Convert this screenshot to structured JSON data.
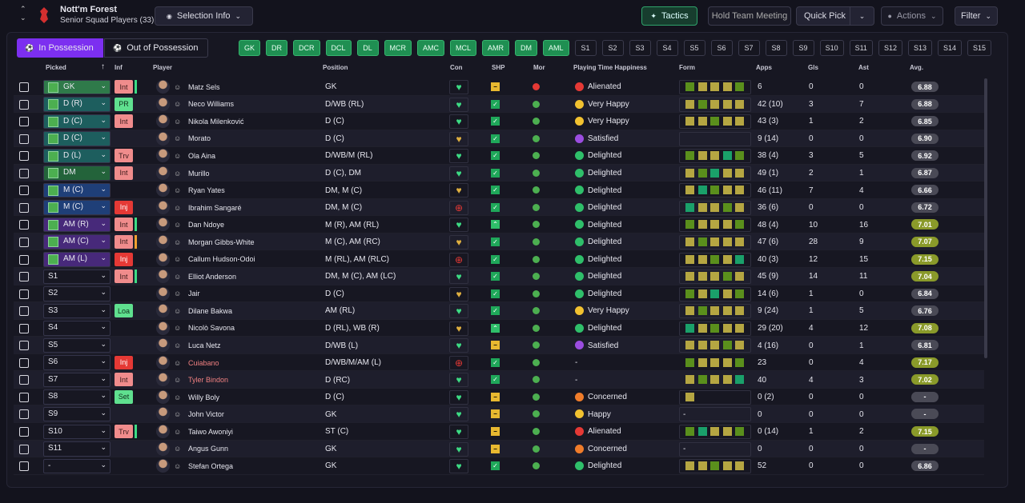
{
  "header": {
    "club": "Nott'm Forest",
    "subtitle": "Senior Squad Players (33)"
  },
  "buttons": {
    "selection_info": "Selection Info",
    "tactics": "Tactics",
    "hold_team_meeting": "Hold Team Meeting",
    "quick_pick": "Quick Pick",
    "actions": "Actions",
    "filter": "Filter"
  },
  "tabs": [
    "In Possession",
    "Out of Possession"
  ],
  "positions": [
    "GK",
    "DR",
    "DCR",
    "DCL",
    "DL",
    "MCR",
    "AMC",
    "MCL",
    "AMR",
    "DM",
    "AML",
    "S1",
    "S2",
    "S3",
    "S4",
    "S5",
    "S6",
    "S7",
    "S8",
    "S9",
    "S10",
    "S11",
    "S12",
    "S13",
    "S14",
    "S15"
  ],
  "columns": [
    "Picked",
    "Inf",
    "Player",
    "Position",
    "Con",
    "SHP",
    "Mor",
    "Playing Time Happiness",
    "Form",
    "Apps",
    "Gls",
    "Ast",
    "Avg."
  ],
  "rows": [
    {
      "picked": "GK",
      "inf": "Int",
      "player": "Matz Sels",
      "position": "GK",
      "happiness": "Alienated",
      "apps": "6",
      "gls": 0,
      "ast": 0,
      "avg": "6.88"
    },
    {
      "picked": "D (R)",
      "inf": "PR",
      "player": "Neco Williams",
      "position": "D/WB (RL)",
      "happiness": "Very Happy",
      "apps": "42 (10)",
      "gls": 3,
      "ast": 7,
      "avg": "6.88"
    },
    {
      "picked": "D (C)",
      "inf": "Int",
      "player": "Nikola Milenković",
      "position": "D (C)",
      "happiness": "Very Happy",
      "apps": "43 (3)",
      "gls": 1,
      "ast": 2,
      "avg": "6.85"
    },
    {
      "picked": "D (C)",
      "player": "Morato",
      "position": "D (C)",
      "happiness": "Satisfied",
      "apps": "9 (14)",
      "gls": 0,
      "ast": 0,
      "avg": "6.90"
    },
    {
      "picked": "D (L)",
      "inf": "Trv",
      "player": "Ola Aina",
      "position": "D/WB/M (RL)",
      "happiness": "Delighted",
      "apps": "38 (4)",
      "gls": 3,
      "ast": 5,
      "avg": "6.92"
    },
    {
      "picked": "DM",
      "inf": "Int",
      "player": "Murillo",
      "position": "D (C), DM",
      "happiness": "Delighted",
      "apps": "49 (1)",
      "gls": 2,
      "ast": 1,
      "avg": "6.87"
    },
    {
      "picked": "M (C)",
      "player": "Ryan Yates",
      "position": "DM, M (C)",
      "happiness": "Delighted",
      "apps": "46 (11)",
      "gls": 7,
      "ast": 4,
      "avg": "6.66"
    },
    {
      "picked": "M (C)",
      "inf": "Inj",
      "player": "Ibrahim Sangaré",
      "position": "DM, M (C)",
      "happiness": "Delighted",
      "apps": "36 (6)",
      "gls": 0,
      "ast": 0,
      "avg": "6.72"
    },
    {
      "picked": "AM (R)",
      "inf": "Int",
      "player": "Dan Ndoye",
      "position": "M (R), AM (RL)",
      "happiness": "Delighted",
      "apps": "48 (4)",
      "gls": 10,
      "ast": 16,
      "avg": "7.01"
    },
    {
      "picked": "AM (C)",
      "inf": "Int",
      "player": "Morgan Gibbs-White",
      "position": "M (C), AM (RC)",
      "happiness": "Delighted",
      "apps": "47 (6)",
      "gls": 28,
      "ast": 9,
      "avg": "7.07"
    },
    {
      "picked": "AM (L)",
      "inf": "Inj",
      "player": "Callum Hudson-Odoi",
      "position": "M (RL), AM (RLC)",
      "happiness": "Delighted",
      "apps": "40 (3)",
      "gls": 12,
      "ast": 15,
      "avg": "7.15"
    },
    {
      "picked": "S1",
      "inf": "Int",
      "player": "Elliot Anderson",
      "position": "DM, M (C), AM (LC)",
      "happiness": "Delighted",
      "apps": "45 (9)",
      "gls": 14,
      "ast": 11,
      "avg": "7.04"
    },
    {
      "picked": "S2",
      "player": "Jair",
      "position": "D (C)",
      "happiness": "Delighted",
      "apps": "14 (6)",
      "gls": 1,
      "ast": 0,
      "avg": "6.84"
    },
    {
      "picked": "S3",
      "inf": "Loa",
      "player": "Dilane Bakwa",
      "position": "AM (RL)",
      "happiness": "Very Happy",
      "apps": "9 (24)",
      "gls": 1,
      "ast": 5,
      "avg": "6.76"
    },
    {
      "picked": "S4",
      "player": "Nicolò Savona",
      "position": "D (RL), WB (R)",
      "happiness": "Delighted",
      "apps": "29 (20)",
      "gls": 4,
      "ast": 12,
      "avg": "7.08"
    },
    {
      "picked": "S5",
      "player": "Luca Netz",
      "position": "D/WB (L)",
      "happiness": "Satisfied",
      "apps": "4 (16)",
      "gls": 0,
      "ast": 1,
      "avg": "6.81"
    },
    {
      "picked": "S6",
      "inf": "Inj",
      "player": "Cuiabano",
      "position": "D/WB/M/AM (L)",
      "happiness": "-",
      "apps": "23",
      "gls": 0,
      "ast": 4,
      "avg": "7.17"
    },
    {
      "picked": "S7",
      "inf": "Int",
      "player": "Tyler Bindon",
      "position": "D (RC)",
      "happiness": "-",
      "apps": "40",
      "gls": 4,
      "ast": 3,
      "avg": "7.02"
    },
    {
      "picked": "S8",
      "inf": "Set",
      "player": "Willy Boly",
      "position": "D (C)",
      "happiness": "Concerned",
      "apps": "0 (2)",
      "gls": 0,
      "ast": 0,
      "avg": "-"
    },
    {
      "picked": "S9",
      "player": "John Victor",
      "position": "GK",
      "happiness": "Happy",
      "form": "-",
      "apps": "0",
      "gls": 0,
      "ast": 0,
      "avg": "-"
    },
    {
      "picked": "S10",
      "inf": "Trv",
      "player": "Taiwo Awoniyi",
      "position": "ST (C)",
      "happiness": "Alienated",
      "apps": "0 (14)",
      "gls": 1,
      "ast": 2,
      "avg": "7.15"
    },
    {
      "picked": "S11",
      "player": "Angus Gunn",
      "position": "GK",
      "happiness": "Concerned",
      "form": "-",
      "apps": "0",
      "gls": 0,
      "ast": 0,
      "avg": "-"
    },
    {
      "picked": "-",
      "player": "Stefan Ortega",
      "position": "GK",
      "happiness": "Delighted",
      "apps": "52",
      "gls": 0,
      "ast": 0,
      "avg": "6.86"
    }
  ]
}
